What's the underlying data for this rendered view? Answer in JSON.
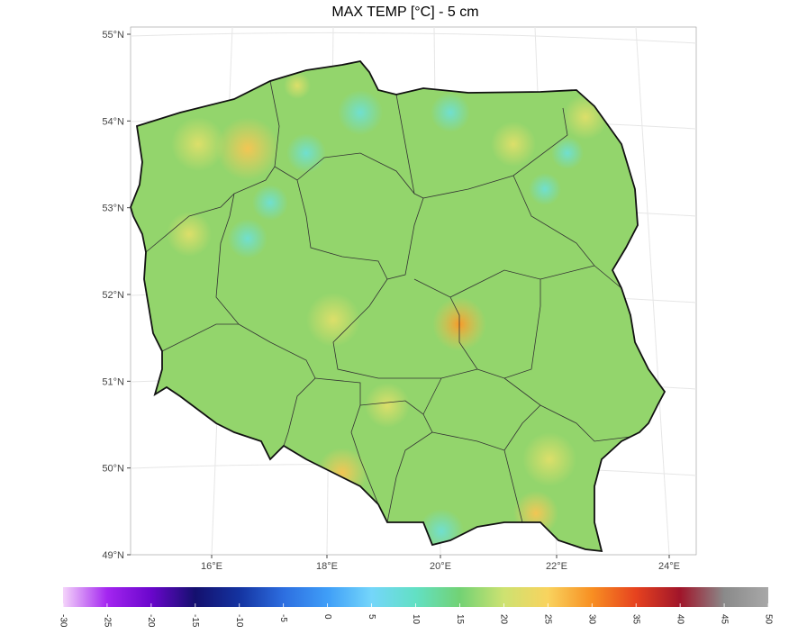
{
  "title": "MAX TEMP [°C] - 5 cm",
  "lat_labels": [
    "55°N",
    "54°N",
    "53°N",
    "52°N",
    "51°N",
    "50°N",
    "49°N"
  ],
  "lon_labels": [
    "16°E",
    "18°E",
    "20°E",
    "22°E",
    "24°E"
  ],
  "colorbar": {
    "range": [
      -30,
      50
    ],
    "ticks": [
      -30,
      -25,
      -20,
      -15,
      -10,
      -5,
      0,
      5,
      10,
      15,
      20,
      25,
      30,
      35,
      40,
      45,
      50
    ],
    "colors": [
      "#f4d4fa",
      "#a426f0",
      "#6a06cc",
      "#14106e",
      "#1433a0",
      "#2d6ee0",
      "#3f9ef8",
      "#74d6fa",
      "#62e0c4",
      "#72d274",
      "#cde271",
      "#f9d35e",
      "#f88f22",
      "#e6421f",
      "#a0152a",
      "#8a8a8a",
      "#a8a8a8"
    ]
  }
}
